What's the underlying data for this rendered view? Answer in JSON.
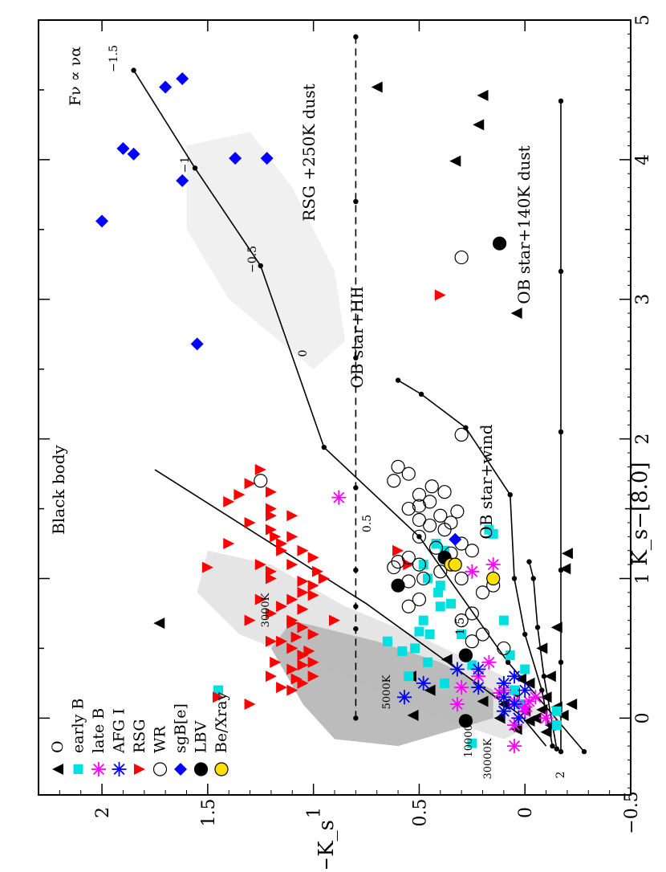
{
  "chart_data": {
    "type": "scatter",
    "orientation": "rotated-90-counterclockwise",
    "xlabel": "K_s−[8.0]",
    "ylabel": "J−K_s",
    "xlim": [
      -0.55,
      5.0
    ],
    "ylim": [
      -0.5,
      2.3
    ],
    "x_ticks": [
      "0",
      "1",
      "2",
      "3",
      "4",
      "5"
    ],
    "y_ticks": [
      "−0.5",
      "0",
      "0.5",
      "1",
      "1.5",
      "2"
    ],
    "grid": false,
    "legend_position": "bottom-left",
    "legend": [
      "O",
      "early B",
      "late B",
      "AFG I",
      "RSG",
      "WR",
      "sgB[e]",
      "LBV",
      "Be/Xray"
    ],
    "annotations": {
      "blackbody": "Black body",
      "powerlaw": "Fν ∝ να",
      "rsg_dust": "RSG +250K dust",
      "ob_dust": "OB star+140K dust",
      "ob_hii": "OB star+HII",
      "ob_wind": "OB star+wind"
    },
    "blackbody_labels": [
      "3000K",
      "5000K",
      "10000K",
      "30000K"
    ],
    "powerlaw_labels": [
      "2",
      "1.5",
      "0.5",
      "0",
      "−0.5",
      "−1",
      "−1.5"
    ],
    "curves": {
      "blackbody": [
        [
          -0.2,
          -0.1
        ],
        [
          0.02,
          0.02
        ],
        [
          0.35,
          0.32
        ],
        [
          0.82,
          0.75
        ],
        [
          1.78,
          1.75
        ]
      ],
      "powerlaw_alpha": [
        [
          -0.24,
          -0.28
        ],
        [
          0.4,
          0.08
        ],
        [
          1.3,
          0.5
        ],
        [
          1.94,
          0.95
        ],
        [
          3.24,
          1.25
        ],
        [
          3.94,
          1.56
        ],
        [
          4.64,
          1.85
        ]
      ],
      "rsg_dust": [
        [
          0.0,
          0.8
        ],
        [
          0.64,
          0.8
        ],
        [
          0.8,
          0.8
        ],
        [
          1.06,
          0.8
        ],
        [
          1.65,
          0.8
        ],
        [
          2.58,
          0.8
        ],
        [
          3.7,
          0.8
        ],
        [
          4.88,
          0.8
        ]
      ],
      "ob_dust": [
        [
          -0.24,
          -0.17
        ],
        [
          0.4,
          -0.17
        ],
        [
          1.06,
          -0.17
        ],
        [
          2.05,
          -0.17
        ],
        [
          3.2,
          -0.17
        ],
        [
          4.42,
          -0.17
        ]
      ],
      "ob_hii": [
        [
          -0.2,
          -0.13
        ],
        [
          0.2,
          -0.08
        ],
        [
          0.6,
          0.0
        ],
        [
          1.0,
          0.05
        ],
        [
          1.6,
          0.07
        ],
        [
          2.08,
          0.28
        ],
        [
          2.32,
          0.49
        ],
        [
          2.42,
          0.6
        ]
      ],
      "ob_wind": [
        [
          -0.22,
          -0.15
        ],
        [
          0.3,
          -0.09
        ],
        [
          0.65,
          -0.06
        ],
        [
          1.0,
          -0.04
        ],
        [
          1.12,
          -0.02
        ]
      ]
    },
    "series": [
      {
        "name": "O",
        "marker": "triangle",
        "color": "#000000",
        "points": [
          [
            4.52,
            0.7
          ],
          [
            4.46,
            0.2
          ],
          [
            4.25,
            0.22
          ],
          [
            3.99,
            0.33
          ],
          [
            2.9,
            0.04
          ],
          [
            1.18,
            -0.2
          ],
          [
            1.07,
            -0.19
          ],
          [
            0.02,
            0.53
          ],
          [
            0.68,
            1.73
          ],
          [
            0.42,
            0.37
          ],
          [
            0.3,
            0.54
          ],
          [
            0.2,
            0.45
          ],
          [
            0.1,
            0.1
          ],
          [
            0.05,
            0.0
          ],
          [
            0.0,
            -0.05
          ],
          [
            -0.05,
            -0.12
          ],
          [
            0.15,
            -0.1
          ],
          [
            0.25,
            -0.02
          ],
          [
            0.0,
            0.12
          ],
          [
            -0.1,
            -0.1
          ],
          [
            0.08,
            -0.15
          ],
          [
            0.12,
            0.2
          ],
          [
            -0.02,
            -0.02
          ],
          [
            0.18,
            0.05
          ],
          [
            0.3,
            -0.12
          ],
          [
            0.5,
            -0.08
          ],
          [
            0.65,
            -0.15
          ],
          [
            0.02,
            -0.18
          ],
          [
            -0.08,
            0.04
          ],
          [
            0.06,
            -0.08
          ],
          [
            0.28,
            0.02
          ],
          [
            0.1,
            -0.22
          ]
        ]
      },
      {
        "name": "early B",
        "marker": "square",
        "color": "#00e0e0",
        "points": [
          [
            -0.18,
            0.25
          ],
          [
            0.2,
            1.45
          ],
          [
            1.35,
            0.17
          ],
          [
            1.32,
            0.15
          ],
          [
            1.2,
            0.38
          ],
          [
            1.1,
            0.48
          ],
          [
            1.0,
            0.46
          ],
          [
            0.9,
            0.41
          ],
          [
            0.8,
            0.4
          ],
          [
            0.7,
            0.48
          ],
          [
            0.6,
            0.45
          ],
          [
            0.55,
            0.65
          ],
          [
            0.5,
            0.52
          ],
          [
            0.4,
            0.46
          ],
          [
            0.3,
            0.55
          ],
          [
            0.25,
            0.38
          ],
          [
            0.6,
            0.3
          ],
          [
            0.7,
            0.1
          ],
          [
            0.45,
            0.07
          ],
          [
            0.35,
            0.0
          ],
          [
            0.2,
            0.05
          ],
          [
            0.1,
            0.02
          ],
          [
            0.05,
            -0.15
          ],
          [
            -0.05,
            -0.15
          ],
          [
            1.25,
            0.42
          ],
          [
            0.95,
            0.4
          ],
          [
            0.82,
            0.35
          ],
          [
            0.48,
            0.58
          ],
          [
            0.62,
            0.5
          ],
          [
            0.38,
            0.25
          ]
        ]
      },
      {
        "name": "late B",
        "marker": "asterisk",
        "color": "#ff00ff",
        "points": [
          [
            1.58,
            0.88
          ],
          [
            1.1,
            0.15
          ],
          [
            1.05,
            0.25
          ],
          [
            0.4,
            0.17
          ],
          [
            0.3,
            0.22
          ],
          [
            0.2,
            0.1
          ],
          [
            0.12,
            0.05
          ],
          [
            0.08,
            0.0
          ],
          [
            0.15,
            -0.05
          ],
          [
            0.05,
            0.0
          ],
          [
            0.0,
            -0.1
          ],
          [
            -0.05,
            0.05
          ],
          [
            0.22,
            0.3
          ],
          [
            0.1,
            0.32
          ],
          [
            -0.2,
            0.05
          ],
          [
            0.18,
            0.12
          ],
          [
            0.12,
            -0.02
          ]
        ]
      },
      {
        "name": "AFG I",
        "marker": "asterisk",
        "color": "#0000ff",
        "points": [
          [
            0.15,
            0.57
          ],
          [
            0.25,
            0.48
          ],
          [
            0.35,
            0.22
          ],
          [
            0.3,
            0.05
          ],
          [
            0.2,
            0.0
          ],
          [
            0.1,
            0.05
          ],
          [
            0.0,
            0.03
          ],
          [
            0.35,
            0.32
          ],
          [
            0.25,
            0.1
          ],
          [
            0.15,
            0.1
          ],
          [
            0.22,
            0.22
          ],
          [
            0.05,
            0.1
          ]
        ]
      },
      {
        "name": "RSG",
        "marker": "triangle-down",
        "color": "#ff0000",
        "points": [
          [
            1.78,
            1.25
          ],
          [
            1.68,
            1.3
          ],
          [
            1.6,
            1.35
          ],
          [
            1.55,
            1.4
          ],
          [
            1.5,
            1.2
          ],
          [
            1.45,
            1.1
          ],
          [
            1.4,
            1.3
          ],
          [
            1.35,
            1.2
          ],
          [
            1.3,
            1.1
          ],
          [
            1.25,
            1.15
          ],
          [
            1.2,
            1.05
          ],
          [
            1.15,
            1.0
          ],
          [
            1.1,
            1.1
          ],
          [
            1.05,
            1.2
          ],
          [
            1.0,
            0.95
          ],
          [
            0.95,
            1.0
          ],
          [
            0.9,
            1.05
          ],
          [
            0.85,
            1.1
          ],
          [
            0.8,
            1.15
          ],
          [
            0.75,
            1.2
          ],
          [
            0.7,
            1.1
          ],
          [
            0.65,
            1.05
          ],
          [
            0.6,
            1.0
          ],
          [
            0.55,
            1.15
          ],
          [
            0.5,
            1.1
          ],
          [
            0.45,
            1.05
          ],
          [
            0.4,
            1.0
          ],
          [
            0.35,
            1.1
          ],
          [
            0.3,
            1.0
          ],
          [
            0.25,
            1.05
          ],
          [
            0.2,
            1.1
          ],
          [
            0.3,
            1.2
          ],
          [
            0.4,
            1.18
          ],
          [
            0.55,
            1.2
          ],
          [
            0.7,
            1.3
          ],
          [
            0.85,
            1.25
          ],
          [
            1.0,
            1.2
          ],
          [
            1.1,
            1.25
          ],
          [
            1.2,
            1.15
          ],
          [
            1.3,
            1.18
          ],
          [
            1.45,
            1.2
          ],
          [
            1.62,
            1.2
          ],
          [
            1.2,
            0.6
          ],
          [
            1.1,
            0.55
          ],
          [
            1.05,
            0.98
          ],
          [
            0.98,
            1.05
          ],
          [
            0.88,
            1.0
          ],
          [
            0.78,
            1.05
          ],
          [
            0.68,
            1.1
          ],
          [
            0.58,
            1.08
          ],
          [
            0.48,
            1.02
          ],
          [
            0.38,
            1.05
          ],
          [
            0.28,
            1.08
          ],
          [
            0.22,
            1.15
          ],
          [
            0.15,
            1.45
          ],
          [
            0.1,
            1.3
          ],
          [
            1.08,
            1.5
          ],
          [
            0.7,
            0.9
          ],
          [
            3.03,
            0.4
          ],
          [
            1.25,
            1.4
          ]
        ]
      },
      {
        "name": "WR",
        "marker": "circle-open",
        "color": "#000000",
        "points": [
          [
            3.3,
            0.3
          ],
          [
            2.03,
            0.3
          ],
          [
            1.7,
            1.25
          ],
          [
            1.8,
            0.6
          ],
          [
            1.75,
            0.55
          ],
          [
            1.7,
            0.62
          ],
          [
            1.6,
            0.5
          ],
          [
            1.55,
            0.45
          ],
          [
            1.5,
            0.55
          ],
          [
            1.45,
            0.4
          ],
          [
            1.42,
            0.5
          ],
          [
            1.38,
            0.45
          ],
          [
            1.35,
            0.38
          ],
          [
            1.3,
            0.5
          ],
          [
            1.25,
            0.3
          ],
          [
            1.2,
            0.25
          ],
          [
            1.15,
            0.55
          ],
          [
            1.1,
            0.5
          ],
          [
            1.05,
            0.4
          ],
          [
            1.0,
            0.3
          ],
          [
            0.95,
            0.15
          ],
          [
            0.9,
            0.2
          ],
          [
            0.85,
            0.5
          ],
          [
            0.8,
            0.55
          ],
          [
            0.75,
            0.25
          ],
          [
            0.7,
            0.3
          ],
          [
            0.6,
            0.2
          ],
          [
            0.55,
            0.25
          ],
          [
            0.5,
            0.1
          ],
          [
            1.48,
            0.32
          ],
          [
            1.52,
            0.5
          ],
          [
            1.12,
            0.6
          ],
          [
            1.18,
            0.35
          ],
          [
            1.08,
            0.62
          ],
          [
            0.98,
            0.55
          ],
          [
            1.4,
            0.35
          ],
          [
            1.62,
            0.38
          ],
          [
            1.66,
            0.44
          ],
          [
            1.0,
            0.48
          ],
          [
            1.22,
            0.42
          ]
        ]
      },
      {
        "name": "sgB[e]",
        "marker": "diamond",
        "color": "#0000ff",
        "points": [
          [
            3.56,
            2.0
          ],
          [
            4.08,
            1.9
          ],
          [
            4.04,
            1.85
          ],
          [
            4.58,
            1.62
          ],
          [
            4.52,
            1.7
          ],
          [
            3.85,
            1.62
          ],
          [
            4.01,
            1.37
          ],
          [
            4.01,
            1.22
          ],
          [
            2.68,
            1.55
          ],
          [
            1.28,
            0.33
          ]
        ]
      },
      {
        "name": "LBV",
        "marker": "circle-filled",
        "color": "#000000",
        "points": [
          [
            3.4,
            0.12
          ],
          [
            1.15,
            0.38
          ],
          [
            0.95,
            0.6
          ],
          [
            -0.02,
            0.28
          ],
          [
            0.45,
            0.28
          ]
        ]
      },
      {
        "name": "Be/Xray",
        "marker": "circle-filled",
        "color": "#ffe000",
        "points": [
          [
            1.1,
            0.35
          ],
          [
            1.0,
            0.15
          ],
          [
            1.1,
            0.33
          ]
        ]
      }
    ],
    "shaded_regions": [
      {
        "name": "gray-dense",
        "color": "#b8b8b8"
      },
      {
        "name": "gray-light",
        "color": "#e2e2e2"
      }
    ]
  }
}
